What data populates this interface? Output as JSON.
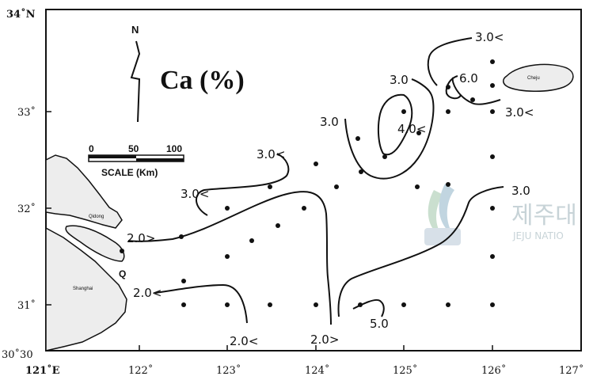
{
  "map": {
    "title": "Ca (%)",
    "north_label": "N",
    "scale": {
      "ticks": [
        "0",
        "50",
        "100"
      ],
      "label": "SCALE (Km)"
    },
    "lon_labels": [
      "121˚E",
      "122˚",
      "123˚",
      "124˚",
      "125˚",
      "126˚",
      "127˚"
    ],
    "lat_labels": [
      "34˚N",
      "33˚",
      "32˚",
      "31˚",
      "30˚30"
    ],
    "contour_labels": [
      "3.0<",
      "6.0",
      "3.0",
      "4.0<",
      "3.0",
      "3.0<",
      "3.0<",
      "3.0<",
      "3.0",
      "2.0>",
      "2.0<",
      "2.0<",
      "2.0>",
      "5.0"
    ],
    "place_labels": {
      "jeju": "Cheju",
      "q_marker": "Q",
      "qidong": "Qidong",
      "shanghai": "Shanghai"
    },
    "watermark": {
      "korean": "제주대",
      "english": "JEJU NATIO"
    }
  },
  "colors": {
    "line": "#111111",
    "land_fill": "#ededed",
    "watermark": "#9ab0b8"
  }
}
